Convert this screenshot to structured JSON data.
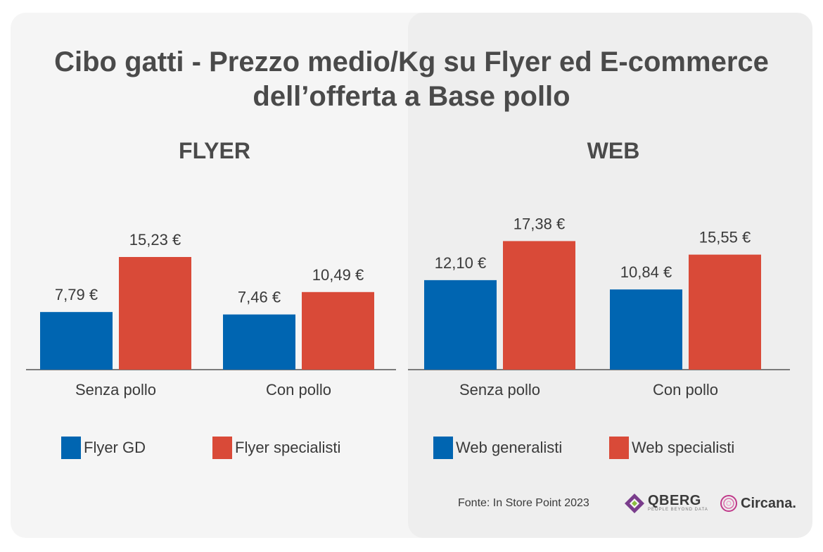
{
  "title_line1": "Cibo gatti - Prezzo medio/Kg su Flyer ed E-commerce",
  "title_line2": "dell’offerta a Base pollo",
  "source": "Fonte: In Store Point 2023",
  "logos": {
    "qberg": "QBERG",
    "qberg_tagline": "PEOPLE BEYOND DATA",
    "circana": "Circana."
  },
  "colors": {
    "blue": "#0065b1",
    "red": "#d94a38",
    "axis": "#555555"
  },
  "chart_data": [
    {
      "type": "bar",
      "title": "FLYER",
      "categories": [
        "Senza pollo",
        "Con pollo"
      ],
      "series": [
        {
          "name": "Flyer GD",
          "values": [
            7.79,
            7.46
          ],
          "labels": [
            "7,79 €",
            "7,46 €"
          ],
          "color": "#0065b1"
        },
        {
          "name": "Flyer specialisti",
          "values": [
            15.23,
            10.49
          ],
          "labels": [
            "15,23 €",
            "10,49 €"
          ],
          "color": "#d94a38"
        }
      ],
      "grid": false,
      "legend": "bottom"
    },
    {
      "type": "bar",
      "title": "WEB",
      "categories": [
        "Senza pollo",
        "Con pollo"
      ],
      "series": [
        {
          "name": "Web generalisti",
          "values": [
            12.1,
            10.84
          ],
          "labels": [
            "12,10 €",
            "10,84 €"
          ],
          "color": "#0065b1"
        },
        {
          "name": "Web specialisti",
          "values": [
            17.38,
            15.55
          ],
          "labels": [
            "17,38 €",
            "15,55 €"
          ],
          "color": "#d94a38"
        }
      ],
      "grid": false,
      "legend": "bottom"
    }
  ]
}
